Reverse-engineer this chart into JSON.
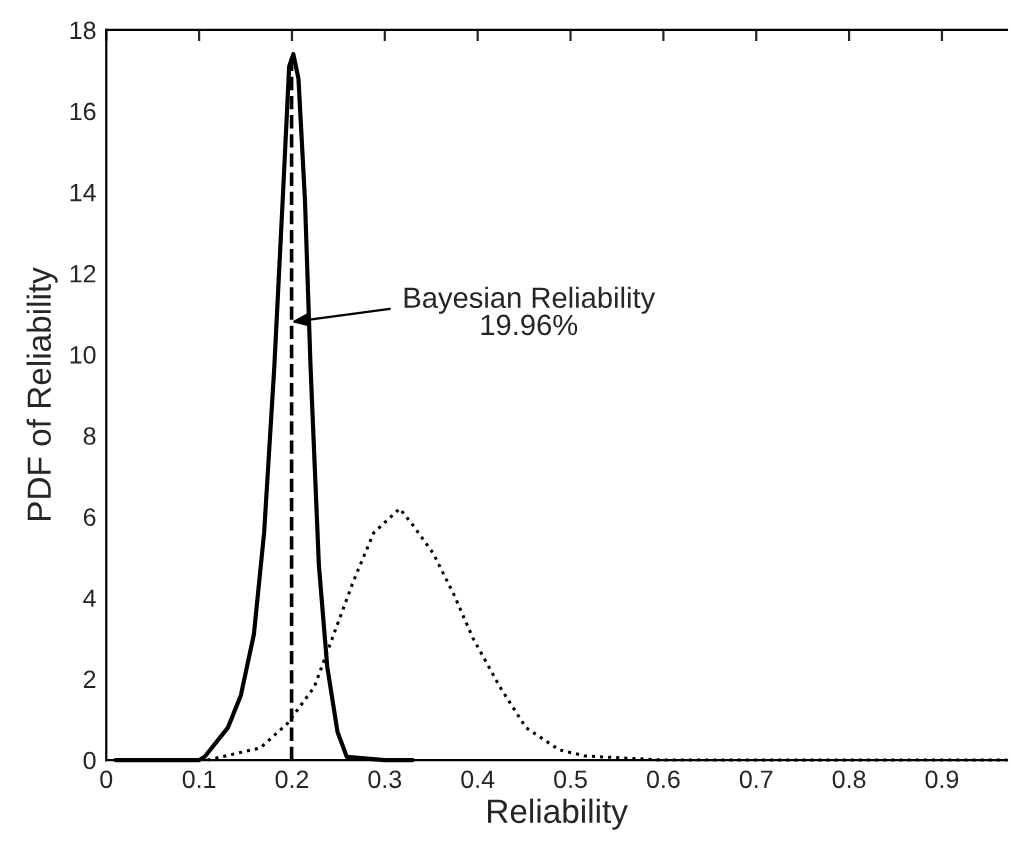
{
  "chart_data": {
    "type": "line",
    "xlabel": "Reliability",
    "ylabel": "PDF of Reliability",
    "xlim": [
      0,
      0.97
    ],
    "xticks": [
      0,
      0.1,
      0.2,
      0.3,
      0.4,
      0.5,
      0.6,
      0.7,
      0.8,
      0.9
    ],
    "ylim": [
      0,
      18
    ],
    "yticks": [
      0,
      2,
      4,
      6,
      8,
      10,
      12,
      14,
      16,
      18
    ],
    "grid": false,
    "marker": "none",
    "series": [
      {
        "color": "#000000",
        "line_style": "solid",
        "x": [
          0.01,
          0.05,
          0.1,
          0.106,
          0.131,
          0.145,
          0.159,
          0.17,
          0.181,
          0.19,
          0.197,
          0.2015,
          0.207,
          0.214,
          0.22,
          0.229,
          0.238,
          0.249,
          0.259,
          0.3,
          0.33
        ],
        "values": [
          0,
          0,
          0,
          0.08,
          0.8,
          1.6,
          3.1,
          5.6,
          9.7,
          13.8,
          17.1,
          17.4,
          16.8,
          13.8,
          9.7,
          4.8,
          2.3,
          0.7,
          0.08,
          0,
          0
        ]
      },
      {
        "color": "#000000",
        "line_style": "dotted",
        "x": [
          0.109,
          0.166,
          0.195,
          0.224,
          0.245,
          0.266,
          0.288,
          0.316,
          0.33,
          0.352,
          0.374,
          0.395,
          0.424,
          0.452,
          0.488,
          0.516,
          0.6,
          0.8,
          0.97
        ],
        "values": [
          0,
          0.3,
          0.9,
          1.8,
          3.1,
          4.4,
          5.6,
          6.2,
          5.8,
          5.1,
          4.1,
          3.0,
          1.8,
          0.8,
          0.25,
          0.1,
          0,
          0,
          0
        ]
      }
    ],
    "ref_lines": [
      {
        "axis": "x",
        "value": 0.1996,
        "color": "#000000",
        "line_style": "dashed"
      }
    ],
    "annotations": [
      {
        "text": "Bayesian Reliability\n19.96%",
        "x": 0.1996,
        "y": 10.8
      }
    ]
  }
}
